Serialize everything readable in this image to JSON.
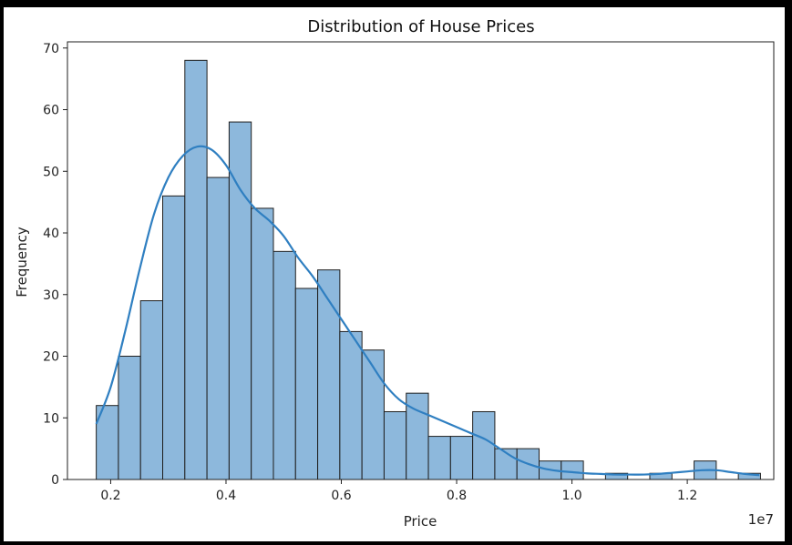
{
  "colors": {
    "bar_fill": "#8db8dc",
    "bar_edge": "#1f1f1f",
    "kde_line": "#2f7fc1",
    "background": "#ffffff",
    "frame": "#000000"
  },
  "chart_data": {
    "type": "bar",
    "subtype": "histogram-with-kde",
    "title": "Distribution of House Prices",
    "xlabel": "Price",
    "ylabel": "Frequency",
    "x_offset_label": "1e7",
    "xlim": [
      0.125,
      1.35
    ],
    "ylim": [
      0,
      71
    ],
    "xticks": [
      0.2,
      0.4,
      0.6,
      0.8,
      1.0,
      1.2
    ],
    "xtick_labels": [
      "0.2",
      "0.4",
      "0.6",
      "0.8",
      "1.0",
      "1.2"
    ],
    "yticks": [
      0,
      10,
      20,
      30,
      40,
      50,
      60,
      70
    ],
    "ytick_labels": [
      "0",
      "10",
      "20",
      "30",
      "40",
      "50",
      "60",
      "70"
    ],
    "bin_start": 0.175,
    "bin_width": 0.0384,
    "values": [
      12,
      20,
      29,
      46,
      68,
      49,
      58,
      44,
      37,
      31,
      34,
      24,
      21,
      11,
      14,
      7,
      7,
      11,
      5,
      5,
      3,
      3,
      0,
      1,
      0,
      1,
      0,
      3,
      0,
      1
    ],
    "kde": {
      "x": [
        0.175,
        0.2,
        0.225,
        0.25,
        0.275,
        0.3,
        0.325,
        0.35,
        0.375,
        0.4,
        0.425,
        0.45,
        0.475,
        0.5,
        0.525,
        0.55,
        0.575,
        0.6,
        0.625,
        0.65,
        0.675,
        0.7,
        0.725,
        0.75,
        0.775,
        0.8,
        0.825,
        0.85,
        0.875,
        0.9,
        0.925,
        0.95,
        0.975,
        1.0,
        1.025,
        1.05,
        1.075,
        1.1,
        1.125,
        1.15,
        1.175,
        1.2,
        1.225,
        1.25,
        1.275,
        1.3,
        1.325
      ],
      "y": [
        9,
        15,
        24,
        34,
        43,
        49,
        52.5,
        54,
        53.5,
        51,
        47,
        44,
        42,
        39.5,
        36,
        33,
        29.5,
        26,
        22.5,
        19,
        15.5,
        13,
        11.5,
        10.5,
        9.5,
        8.5,
        7.5,
        6.5,
        5,
        3.5,
        2.5,
        1.8,
        1.4,
        1.2,
        1.0,
        0.9,
        0.8,
        0.8,
        0.8,
        0.9,
        1.1,
        1.3,
        1.5,
        1.5,
        1.2,
        0.9,
        0.7
      ]
    }
  }
}
